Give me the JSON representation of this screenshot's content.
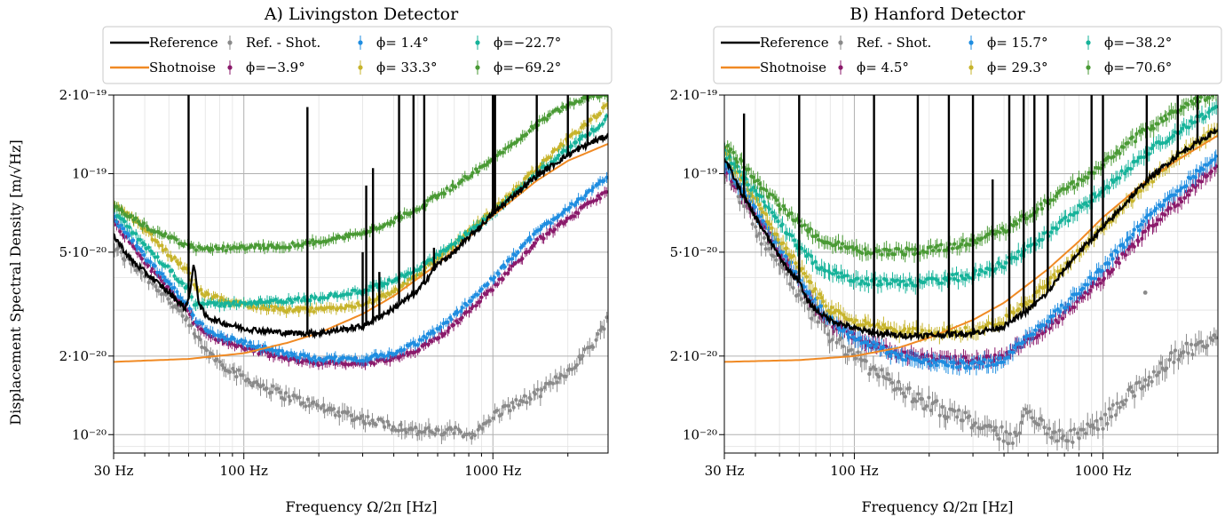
{
  "ylabel": "Displacement Spectral Density [m/√Hz]",
  "colors": {
    "reference": "#000000",
    "shotnoise": "#f08a24",
    "ref_shot": "#8a8a8a",
    "phase1": "#8b1a6b",
    "phase2": "#1f8de0",
    "phase3": "#c7b42c",
    "phase4": "#17b39a",
    "phase5": "#4a9a35"
  },
  "chart_data": [
    {
      "type": "line",
      "title": "A) Livingston Detector",
      "xlabel": "Frequency Ω/2π [Hz]",
      "ylabel": "Displacement Spectral Density [m/√Hz]",
      "xscale": "log",
      "yscale": "log",
      "xlim": [
        30,
        2900
      ],
      "ylim": [
        8.5e-21,
        2e-19
      ],
      "xticks": [
        {
          "v": 30,
          "label": "30 Hz"
        },
        {
          "v": 100,
          "label": "100 Hz"
        },
        {
          "v": 1000,
          "label": "1000 Hz"
        }
      ],
      "yticks": [
        {
          "v": 2e-19,
          "label": "2·10⁻¹⁹"
        },
        {
          "v": 1e-19,
          "label": "10⁻¹⁹"
        },
        {
          "v": 5e-20,
          "label": "5·10⁻²⁰"
        },
        {
          "v": 2e-20,
          "label": "2·10⁻²⁰"
        },
        {
          "v": 1e-20,
          "label": "10⁻²⁰"
        }
      ],
      "grid": true,
      "legend_position": "top",
      "legend": {
        "reference": "Reference",
        "shotnoise": "Shotnoise",
        "ref_shot": "Ref. - Shot.",
        "phase1": "ϕ=−3.9°",
        "phase2": "ϕ=  1.4°",
        "phase3": "ϕ=  33.3°",
        "phase4": "ϕ=−22.7°",
        "phase5": "ϕ=−69.2°"
      },
      "series": [
        {
          "key": "shotnoise",
          "name": "Shotnoise",
          "x": [
            30,
            60,
            100,
            150,
            200,
            300,
            400,
            600,
            800,
            1000,
            1500,
            2000,
            2900
          ],
          "y": [
            1.9e-20,
            1.95e-20,
            2.05e-20,
            2.25e-20,
            2.45e-20,
            2.9e-20,
            3.4e-20,
            4.5e-20,
            5.7e-20,
            6.9e-20,
            9.4e-20,
            1.12e-19,
            1.3e-19
          ]
        },
        {
          "key": "ref_shot",
          "name": "Ref. - Shot.",
          "x": [
            30,
            40,
            50,
            60,
            70,
            80,
            100,
            150,
            200,
            300,
            400,
            500,
            600,
            700,
            800,
            900,
            1000,
            1200,
            1500,
            2000,
            2500,
            2900
          ],
          "y": [
            5.2e-20,
            4.1e-20,
            3.3e-20,
            2.65e-20,
            2.1e-20,
            1.9e-20,
            1.65e-20,
            1.4e-20,
            1.28e-20,
            1.15e-20,
            1.08e-20,
            1.03e-20,
            1.02e-20,
            1.03e-20,
            1e-20,
            1.05e-20,
            1.18e-20,
            1.3e-20,
            1.42e-20,
            1.75e-20,
            2.2e-20,
            2.8e-20
          ]
        },
        {
          "key": "phase1",
          "name": "ϕ=−3.9°",
          "x": [
            30,
            40,
            50,
            60,
            63,
            70,
            80,
            100,
            150,
            200,
            300,
            400,
            500,
            600,
            700,
            800,
            1000,
            1200,
            1500,
            2000,
            2500,
            2900
          ],
          "y": [
            6.6e-20,
            4.6e-20,
            3.6e-20,
            3e-20,
            2.7e-20,
            2.45e-20,
            2.3e-20,
            2.15e-20,
            1.95e-20,
            1.88e-20,
            1.87e-20,
            1.95e-20,
            2.1e-20,
            2.35e-20,
            2.65e-20,
            3e-20,
            3.65e-20,
            4.4e-20,
            5.5e-20,
            6.7e-20,
            7.8e-20,
            8.6e-20
          ]
        },
        {
          "key": "phase2",
          "name": "ϕ=  1.4°",
          "x": [
            30,
            40,
            50,
            60,
            63,
            70,
            80,
            100,
            150,
            200,
            300,
            400,
            500,
            600,
            700,
            800,
            1000,
            1200,
            1500,
            2000,
            2500,
            2900
          ],
          "y": [
            6.8e-20,
            4.8e-20,
            3.8e-20,
            3.1e-20,
            2.8e-20,
            2.55e-20,
            2.4e-20,
            2.25e-20,
            2.03e-20,
            1.95e-20,
            1.95e-20,
            2.05e-20,
            2.25e-20,
            2.55e-20,
            2.85e-20,
            3.25e-20,
            3.95e-20,
            4.8e-20,
            6e-20,
            7.4e-20,
            8.6e-20,
            9.8e-20
          ]
        },
        {
          "key": "phase3",
          "name": "ϕ=  33.3°",
          "x": [
            30,
            40,
            50,
            60,
            63,
            70,
            80,
            100,
            150,
            200,
            300,
            400,
            500,
            600,
            700,
            800,
            1000,
            1200,
            1500,
            2000,
            2500,
            2900
          ],
          "y": [
            7.8e-20,
            6.1e-20,
            4.9e-20,
            4.2e-20,
            3.7e-20,
            3.45e-20,
            3.3e-20,
            3.15e-20,
            3e-20,
            3e-20,
            3.15e-20,
            3.5e-20,
            4.1e-20,
            4.7e-20,
            5.3e-20,
            6e-20,
            7.2e-20,
            8.5e-20,
            1.05e-19,
            1.35e-19,
            1.6e-19,
            1.85e-19
          ]
        },
        {
          "key": "phase4",
          "name": "ϕ=−22.7°",
          "x": [
            30,
            40,
            50,
            60,
            63,
            70,
            80,
            100,
            150,
            200,
            300,
            400,
            500,
            600,
            700,
            800,
            1000,
            1200,
            1500,
            2000,
            2500,
            2900
          ],
          "y": [
            7.2e-20,
            5.3e-20,
            4.3e-20,
            3.6e-20,
            3.2e-20,
            3.15e-20,
            3.15e-20,
            3.2e-20,
            3.25e-20,
            3.35e-20,
            3.55e-20,
            3.9e-20,
            4.35e-20,
            4.85e-20,
            5.4e-20,
            5.95e-20,
            7e-20,
            8.2e-20,
            1e-19,
            1.25e-19,
            1.45e-19,
            1.65e-19
          ]
        },
        {
          "key": "phase5",
          "name": "ϕ=−69.2°",
          "x": [
            30,
            40,
            50,
            60,
            63,
            70,
            80,
            100,
            150,
            200,
            300,
            400,
            500,
            600,
            700,
            800,
            1000,
            1200,
            1500,
            2000,
            2500,
            2900
          ],
          "y": [
            7.5e-20,
            6.3e-20,
            5.7e-20,
            5.3e-20,
            5.2e-20,
            5.15e-20,
            5.15e-20,
            5.2e-20,
            5.3e-20,
            5.5e-20,
            5.9e-20,
            6.6e-20,
            7.4e-20,
            8.2e-20,
            9e-20,
            9.8e-20,
            1.13e-19,
            1.3e-19,
            1.55e-19,
            1.85e-19,
            2e-19,
            2e-19
          ]
        },
        {
          "key": "reference",
          "name": "Reference",
          "x": [
            30,
            35,
            40,
            50,
            55,
            58,
            60,
            63,
            66,
            70,
            80,
            100,
            120,
            150,
            200,
            300,
            400,
            500,
            600,
            700,
            800,
            1000,
            1200,
            1500,
            2000,
            2500,
            2900
          ],
          "y": [
            5.8e-20,
            4.7e-20,
            4.2e-20,
            3.5e-20,
            3.2e-20,
            3.05e-20,
            3.3e-20,
            4.5e-20,
            3.2e-20,
            2.85e-20,
            2.7e-20,
            2.55e-20,
            2.5e-20,
            2.45e-20,
            2.45e-20,
            2.6e-20,
            3.05e-20,
            3.55e-20,
            4.5e-20,
            5e-20,
            5.7e-20,
            7e-20,
            8.2e-20,
            9.8e-20,
            1.18e-19,
            1.32e-19,
            1.4e-19
          ]
        }
      ],
      "reference_spikes": [
        [
          60,
          2e-19
        ],
        [
          180,
          1.8e-19
        ],
        [
          300,
          5e-20
        ],
        [
          310,
          9e-20
        ],
        [
          330,
          1.05e-19
        ],
        [
          350,
          4.2e-20
        ],
        [
          420,
          2e-19
        ],
        [
          480,
          2e-19
        ],
        [
          530,
          2e-19
        ],
        [
          580,
          5.2e-20
        ],
        [
          1000,
          2e-19
        ],
        [
          1020,
          2e-19
        ],
        [
          1500,
          2e-19
        ],
        [
          2000,
          2e-19
        ],
        [
          2400,
          2e-19
        ]
      ]
    },
    {
      "type": "line",
      "title": "B) Hanford Detector",
      "xlabel": "Frequency Ω/2π [Hz]",
      "xscale": "log",
      "yscale": "log",
      "xlim": [
        30,
        2900
      ],
      "ylim": [
        8.5e-21,
        2e-19
      ],
      "xticks": [
        {
          "v": 30,
          "label": "30 Hz"
        },
        {
          "v": 100,
          "label": "100 Hz"
        },
        {
          "v": 1000,
          "label": "1000 Hz"
        }
      ],
      "yticks": [
        {
          "v": 2e-19,
          "label": "2·10⁻¹⁹"
        },
        {
          "v": 1e-19,
          "label": "10⁻¹⁹"
        },
        {
          "v": 5e-20,
          "label": "5·10⁻²⁰"
        },
        {
          "v": 2e-20,
          "label": "2·10⁻²⁰"
        },
        {
          "v": 1e-20,
          "label": "10⁻²⁰"
        }
      ],
      "grid": true,
      "legend_position": "top",
      "legend": {
        "reference": "Reference",
        "shotnoise": "Shotnoise",
        "ref_shot": "Ref. - Shot.",
        "phase1": "ϕ=  4.5°",
        "phase2": "ϕ=  15.7°",
        "phase3": "ϕ=  29.3°",
        "phase4": "ϕ=−38.2°",
        "phase5": "ϕ=−70.6°"
      },
      "series": [
        {
          "key": "shotnoise",
          "name": "Shotnoise",
          "x": [
            30,
            60,
            100,
            150,
            200,
            300,
            400,
            600,
            800,
            1000,
            1500,
            2000,
            2900
          ],
          "y": [
            1.9e-20,
            1.93e-20,
            2e-20,
            2.15e-20,
            2.35e-20,
            2.75e-20,
            3.2e-20,
            4.3e-20,
            5.5e-20,
            6.8e-20,
            9.4e-20,
            1.13e-19,
            1.4e-19
          ]
        },
        {
          "key": "ref_shot",
          "name": "Ref. - Shot.",
          "x": [
            30,
            35,
            40,
            50,
            60,
            70,
            80,
            100,
            150,
            200,
            300,
            400,
            450,
            500,
            600,
            700,
            800,
            1000,
            1200,
            1500,
            2000,
            2500,
            2900
          ],
          "y": [
            1.05e-19,
            8e-20,
            6.2e-20,
            4.5e-20,
            3.4e-20,
            2.8e-20,
            2.4e-20,
            2e-20,
            1.5e-20,
            1.3e-20,
            1.12e-20,
            1e-20,
            9.5e-21,
            1.3e-20,
            1e-20,
            9.8e-21,
            1e-20,
            1.12e-20,
            1.35e-20,
            1.6e-20,
            2.05e-20,
            2.2e-20,
            2.3e-20
          ]
        },
        {
          "key": "phase1",
          "name": "ϕ=  4.5°",
          "x": [
            30,
            40,
            50,
            60,
            70,
            80,
            100,
            150,
            200,
            300,
            400,
            500,
            600,
            700,
            800,
            1000,
            1200,
            1500,
            2000,
            2500,
            2900
          ],
          "y": [
            1.05e-19,
            7e-20,
            5e-20,
            3.9e-20,
            3.1e-20,
            2.7e-20,
            2.35e-20,
            2.05e-20,
            1.95e-20,
            1.92e-20,
            1.98e-20,
            2.3e-20,
            2.55e-20,
            2.9e-20,
            3.3e-20,
            4e-20,
            4.8e-20,
            6e-20,
            7.8e-20,
            9.6e-20,
            1.1e-19
          ]
        },
        {
          "key": "phase2",
          "name": "ϕ=  15.7°",
          "x": [
            30,
            40,
            50,
            60,
            70,
            80,
            100,
            150,
            200,
            300,
            400,
            500,
            600,
            700,
            800,
            1000,
            1200,
            1500,
            2000,
            2500,
            2900
          ],
          "y": [
            1.1e-19,
            7.3e-20,
            5.2e-20,
            4e-20,
            3.2e-20,
            2.75e-20,
            2.35e-20,
            2e-20,
            1.88e-20,
            1.85e-20,
            1.92e-20,
            2.4e-20,
            2.75e-20,
            3.1e-20,
            3.55e-20,
            4.4e-20,
            5.3e-20,
            6.7e-20,
            8.6e-20,
            1.05e-19,
            1.2e-19
          ]
        },
        {
          "key": "phase3",
          "name": "ϕ=  29.3°",
          "x": [
            30,
            40,
            50,
            60,
            70,
            80,
            100,
            150,
            200,
            300,
            400,
            500,
            600,
            700,
            800,
            1000,
            1200,
            1500,
            2000,
            2500,
            2900
          ],
          "y": [
            1.2e-19,
            8e-20,
            5.6e-20,
            4.4e-20,
            3.5e-20,
            3e-20,
            2.7e-20,
            2.5e-20,
            2.45e-20,
            2.5e-20,
            2.75e-20,
            3.2e-20,
            3.8e-20,
            4.4e-20,
            5e-20,
            6.2e-20,
            7.4e-20,
            9.2e-20,
            1.15e-19,
            1.35e-19,
            1.5e-19
          ]
        },
        {
          "key": "phase4",
          "name": "ϕ=−38.2°",
          "x": [
            30,
            40,
            50,
            60,
            70,
            80,
            100,
            150,
            200,
            300,
            400,
            500,
            600,
            700,
            800,
            1000,
            1200,
            1500,
            2000,
            2500,
            2900
          ],
          "y": [
            1.2e-19,
            8.5e-20,
            6.4e-20,
            5.2e-20,
            4.5e-20,
            4.2e-20,
            3.9e-20,
            3.8e-20,
            3.85e-20,
            4.1e-20,
            4.5e-20,
            5.2e-20,
            5.9e-20,
            6.6e-20,
            7.3e-20,
            8.6e-20,
            1e-19,
            1.2e-19,
            1.45e-19,
            1.65e-19,
            1.8e-19
          ]
        },
        {
          "key": "phase5",
          "name": "ϕ=−70.6°",
          "x": [
            30,
            40,
            50,
            60,
            70,
            80,
            100,
            150,
            200,
            300,
            400,
            500,
            600,
            700,
            800,
            1000,
            1200,
            1500,
            2000,
            2500,
            2900
          ],
          "y": [
            1.3e-19,
            9.5e-20,
            7.5e-20,
            6.5e-20,
            5.8e-20,
            5.4e-20,
            5.1e-20,
            5e-20,
            5.1e-20,
            5.5e-20,
            6.1e-20,
            6.9e-20,
            7.8e-20,
            8.6e-20,
            9.4e-20,
            1.08e-19,
            1.25e-19,
            1.48e-19,
            1.75e-19,
            1.95e-19,
            2e-19
          ]
        },
        {
          "key": "reference",
          "name": "Reference",
          "x": [
            30,
            35,
            40,
            50,
            55,
            60,
            63,
            66,
            70,
            80,
            100,
            120,
            150,
            200,
            300,
            400,
            500,
            600,
            700,
            800,
            1000,
            1200,
            1500,
            2000,
            2500,
            2900
          ],
          "y": [
            1.15e-19,
            8.5e-20,
            6.8e-20,
            4.8e-20,
            4.2e-20,
            3.9e-20,
            3.4e-20,
            3.2e-20,
            3e-20,
            2.75e-20,
            2.55e-20,
            2.45e-20,
            2.4e-20,
            2.4e-20,
            2.45e-20,
            2.6e-20,
            3e-20,
            3.5e-20,
            4.3e-20,
            5e-20,
            6.2e-20,
            7.5e-20,
            9.4e-20,
            1.18e-19,
            1.35e-19,
            1.48e-19
          ]
        },
        {
          "key": "ref_shot_outlier",
          "name": "",
          "x": [
            1480
          ],
          "y": [
            3.5e-20
          ]
        }
      ],
      "reference_spikes": [
        [
          36,
          1.7e-19
        ],
        [
          60,
          2e-19
        ],
        [
          120,
          2e-19
        ],
        [
          180,
          2e-19
        ],
        [
          240,
          2e-19
        ],
        [
          300,
          2e-19
        ],
        [
          360,
          9.5e-20
        ],
        [
          420,
          2e-19
        ],
        [
          480,
          2e-19
        ],
        [
          530,
          2e-19
        ],
        [
          600,
          2e-19
        ],
        [
          900,
          2e-19
        ],
        [
          1000,
          2e-19
        ],
        [
          1500,
          2e-19
        ],
        [
          2000,
          2e-19
        ],
        [
          2400,
          2e-19
        ]
      ]
    }
  ]
}
